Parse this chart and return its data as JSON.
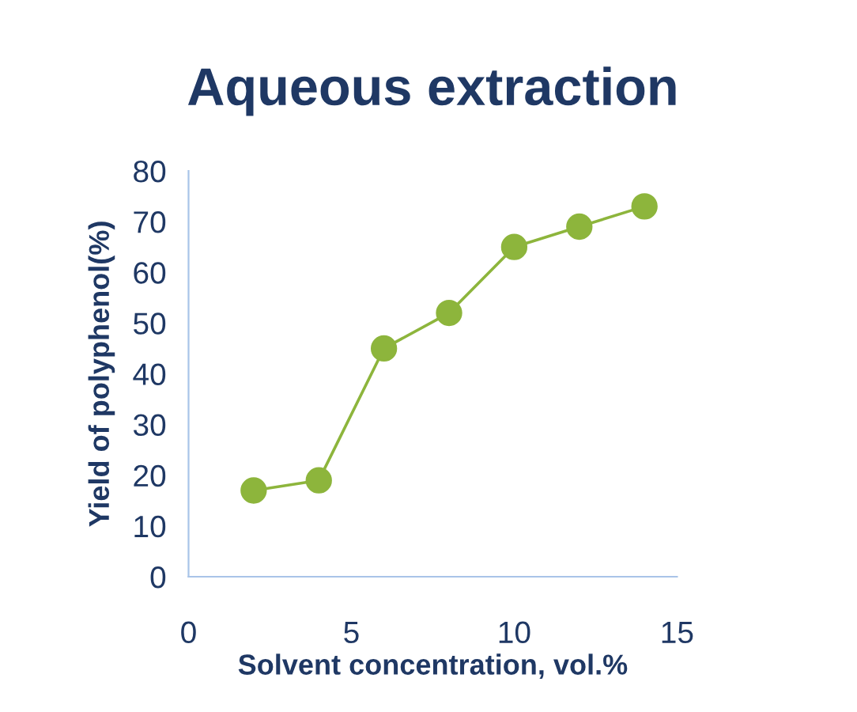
{
  "chart_data": {
    "type": "line",
    "title": "Aqueous extraction",
    "xlabel": "Solvent concentration, vol.%",
    "ylabel": "Yield of polyphenol(%)",
    "x": [
      2,
      4,
      6,
      8,
      10,
      12,
      14
    ],
    "series": [
      {
        "color": "#8db53c",
        "values": [
          17,
          19,
          45,
          52,
          65,
          69,
          73
        ]
      }
    ],
    "xlim": [
      0,
      15
    ],
    "xticks": [
      0,
      5,
      10,
      15
    ],
    "ylim": [
      0,
      80
    ],
    "yticks": [
      0,
      10,
      20,
      30,
      40,
      50,
      60,
      70,
      80
    ],
    "grid": false,
    "marker": "circle",
    "line_style": "solid"
  }
}
